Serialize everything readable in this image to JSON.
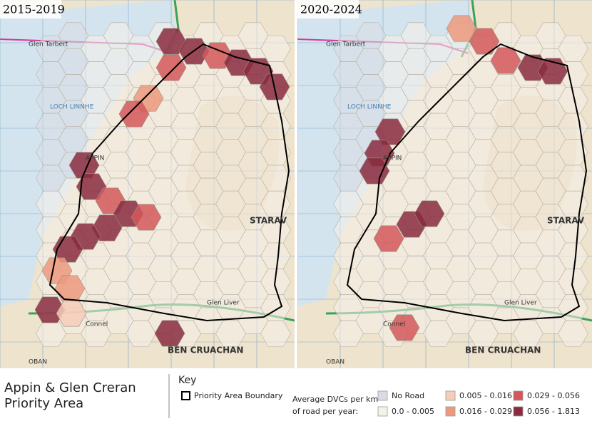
{
  "panels": [
    {
      "title": "2015-2019"
    },
    {
      "title": "2020-2024"
    }
  ],
  "map_labels": [
    "Glen Tarbert",
    "LOCH LINNHE",
    "APPIN",
    "STARAV",
    "BEN CRUACHAN",
    "Connel",
    "Glen Liver",
    "OBAN"
  ],
  "footer": {
    "title_line1": "Appin & Glen Creran",
    "title_line2": "Priority Area"
  },
  "key": {
    "title": "Key",
    "boundary": "Priority Area Boundary",
    "measure_line1": "Average DVCs per km",
    "measure_line2": "of road per year:",
    "classes": [
      {
        "label": "No Road",
        "color": "#d9dde3"
      },
      {
        "label": "0.0 - 0.005",
        "color": "#f6f1ea"
      },
      {
        "label": "0.005 - 0.016",
        "color": "#f6cdb8"
      },
      {
        "label": "0.016 - 0.029",
        "color": "#ec9a7e"
      },
      {
        "label": "0.029 - 0.056",
        "color": "#d3585a"
      },
      {
        "label": "0.056 - 1.813",
        "color": "#8a2c40"
      }
    ]
  }
}
